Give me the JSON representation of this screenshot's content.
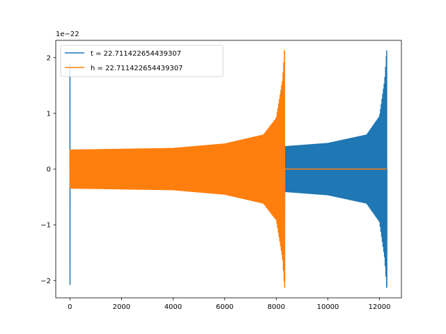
{
  "chart_data": {
    "type": "line",
    "offset_text": "1e−22",
    "xlim": [
      -550,
      12850
    ],
    "ylim": [
      -2.31,
      2.31
    ],
    "x_ticks": [
      0,
      2000,
      4000,
      6000,
      8000,
      10000,
      12000
    ],
    "x_tick_labels": [
      "0",
      "2000",
      "4000",
      "6000",
      "8000",
      "10000",
      "12000"
    ],
    "y_ticks": [
      -2,
      -1,
      0,
      1,
      2
    ],
    "y_tick_labels": [
      "−2",
      "−1",
      "0",
      "1",
      "2"
    ],
    "grid": false,
    "legend_position": "upper-left",
    "series": [
      {
        "name": "t = 22.711422654439307",
        "color": "#1f77b4",
        "x_start": 0,
        "x_end": 12280,
        "envelope": [
          {
            "x": 0,
            "y": 0.35
          },
          {
            "x": 4000,
            "y": 0.37
          },
          {
            "x": 8000,
            "y": 0.4
          },
          {
            "x": 10000,
            "y": 0.47
          },
          {
            "x": 11500,
            "y": 0.62
          },
          {
            "x": 12000,
            "y": 0.95
          },
          {
            "x": 12200,
            "y": 1.6
          },
          {
            "x": 12280,
            "y": 2.13
          }
        ],
        "initial_spike": {
          "x": 0,
          "max": 1.9,
          "min": -2.08
        }
      },
      {
        "name": "h = 22.711422654439307",
        "color": "#ff7f0e",
        "x_start": 0,
        "x_end": 8320,
        "flat_until": 12280,
        "envelope": [
          {
            "x": 0,
            "y": 0.35
          },
          {
            "x": 4000,
            "y": 0.38
          },
          {
            "x": 6000,
            "y": 0.46
          },
          {
            "x": 7500,
            "y": 0.62
          },
          {
            "x": 8000,
            "y": 0.92
          },
          {
            "x": 8240,
            "y": 1.6
          },
          {
            "x": 8320,
            "y": 2.13
          }
        ]
      }
    ]
  }
}
